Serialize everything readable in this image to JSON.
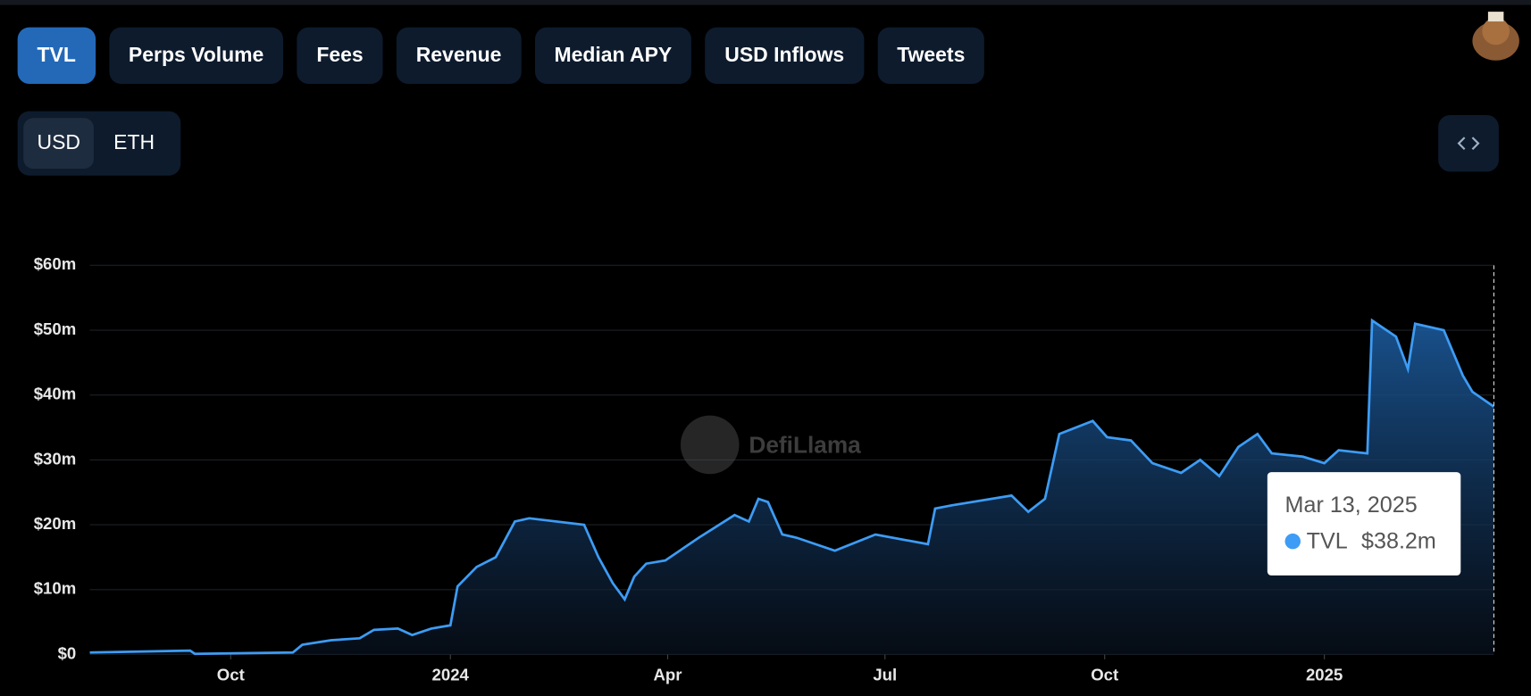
{
  "tabs": [
    "TVL",
    "Perps Volume",
    "Fees",
    "Revenue",
    "Median APY",
    "USD Inflows",
    "Tweets"
  ],
  "active_tab": "TVL",
  "currency_toggle": [
    "USD",
    "ETH"
  ],
  "active_currency": "USD",
  "watermark": "DefiLlama",
  "chart_data": {
    "type": "area",
    "x": [
      "2023-08-03",
      "2023-09-14",
      "2023-09-16",
      "2023-10-27",
      "2023-10-31",
      "2023-11-12",
      "2023-11-24",
      "2023-11-30",
      "2023-12-10",
      "2023-12-16",
      "2023-12-24",
      "2024-01-01",
      "2024-01-04",
      "2024-01-12",
      "2024-01-20",
      "2024-01-28",
      "2024-02-03",
      "2024-02-26",
      "2024-03-03",
      "2024-03-09",
      "2024-03-14",
      "2024-03-18",
      "2024-03-23",
      "2024-03-31",
      "2024-04-14",
      "2024-04-29",
      "2024-05-05",
      "2024-05-09",
      "2024-05-13",
      "2024-05-19",
      "2024-05-25",
      "2024-06-10",
      "2024-06-27",
      "2024-07-19",
      "2024-07-22",
      "2024-07-29",
      "2024-08-23",
      "2024-08-30",
      "2024-09-06",
      "2024-09-12",
      "2024-09-26",
      "2024-10-02",
      "2024-10-12",
      "2024-10-21",
      "2024-11-02",
      "2024-11-10",
      "2024-11-18",
      "2024-11-26",
      "2024-12-04",
      "2024-12-10",
      "2024-12-23",
      "2025-01-01",
      "2025-01-07",
      "2025-01-19",
      "2025-01-21",
      "2025-01-31",
      "2025-02-05",
      "2025-02-08",
      "2025-02-20",
      "2025-02-28",
      "2025-03-04",
      "2025-03-13"
    ],
    "series": [
      {
        "name": "TVL",
        "color": "#3d9cf5",
        "values": [
          0.3,
          0.6,
          0.1,
          0.3,
          1.5,
          2.2,
          2.5,
          3.8,
          4,
          3,
          4,
          4.5,
          10.5,
          13.5,
          15,
          20.5,
          21,
          20,
          15,
          11,
          8.5,
          12,
          14,
          14.5,
          18,
          21.5,
          20.5,
          24,
          23.5,
          18.5,
          18,
          16,
          18.5,
          17,
          22.5,
          23,
          24.5,
          22,
          24,
          34,
          36,
          33.5,
          33,
          29.5,
          28,
          30,
          27.5,
          32,
          34,
          31,
          30.5,
          29.5,
          31.5,
          31,
          51.5,
          49,
          44,
          51,
          50,
          43,
          40.5,
          38.2
        ]
      }
    ],
    "xlim": [
      "2023-08-03",
      "2025-03-13"
    ],
    "xticks": [
      {
        "value": "2023-10-01",
        "label": "Oct"
      },
      {
        "value": "2024-01-01",
        "label": "2024"
      },
      {
        "value": "2024-04-01",
        "label": "Apr"
      },
      {
        "value": "2024-07-01",
        "label": "Jul"
      },
      {
        "value": "2024-10-01",
        "label": "Oct"
      },
      {
        "value": "2025-01-01",
        "label": "2025"
      }
    ],
    "ylim": [
      0,
      60
    ],
    "yticks": [
      {
        "value": 0,
        "label": "$0"
      },
      {
        "value": 10,
        "label": "$10m"
      },
      {
        "value": 20,
        "label": "$20m"
      },
      {
        "value": 30,
        "label": "$30m"
      },
      {
        "value": 40,
        "label": "$40m"
      },
      {
        "value": 50,
        "label": "$50m"
      },
      {
        "value": 60,
        "label": "$60m"
      }
    ],
    "grid": true,
    "tooltip": {
      "date": "Mar 13, 2025",
      "value_label": "$38.2m"
    }
  }
}
